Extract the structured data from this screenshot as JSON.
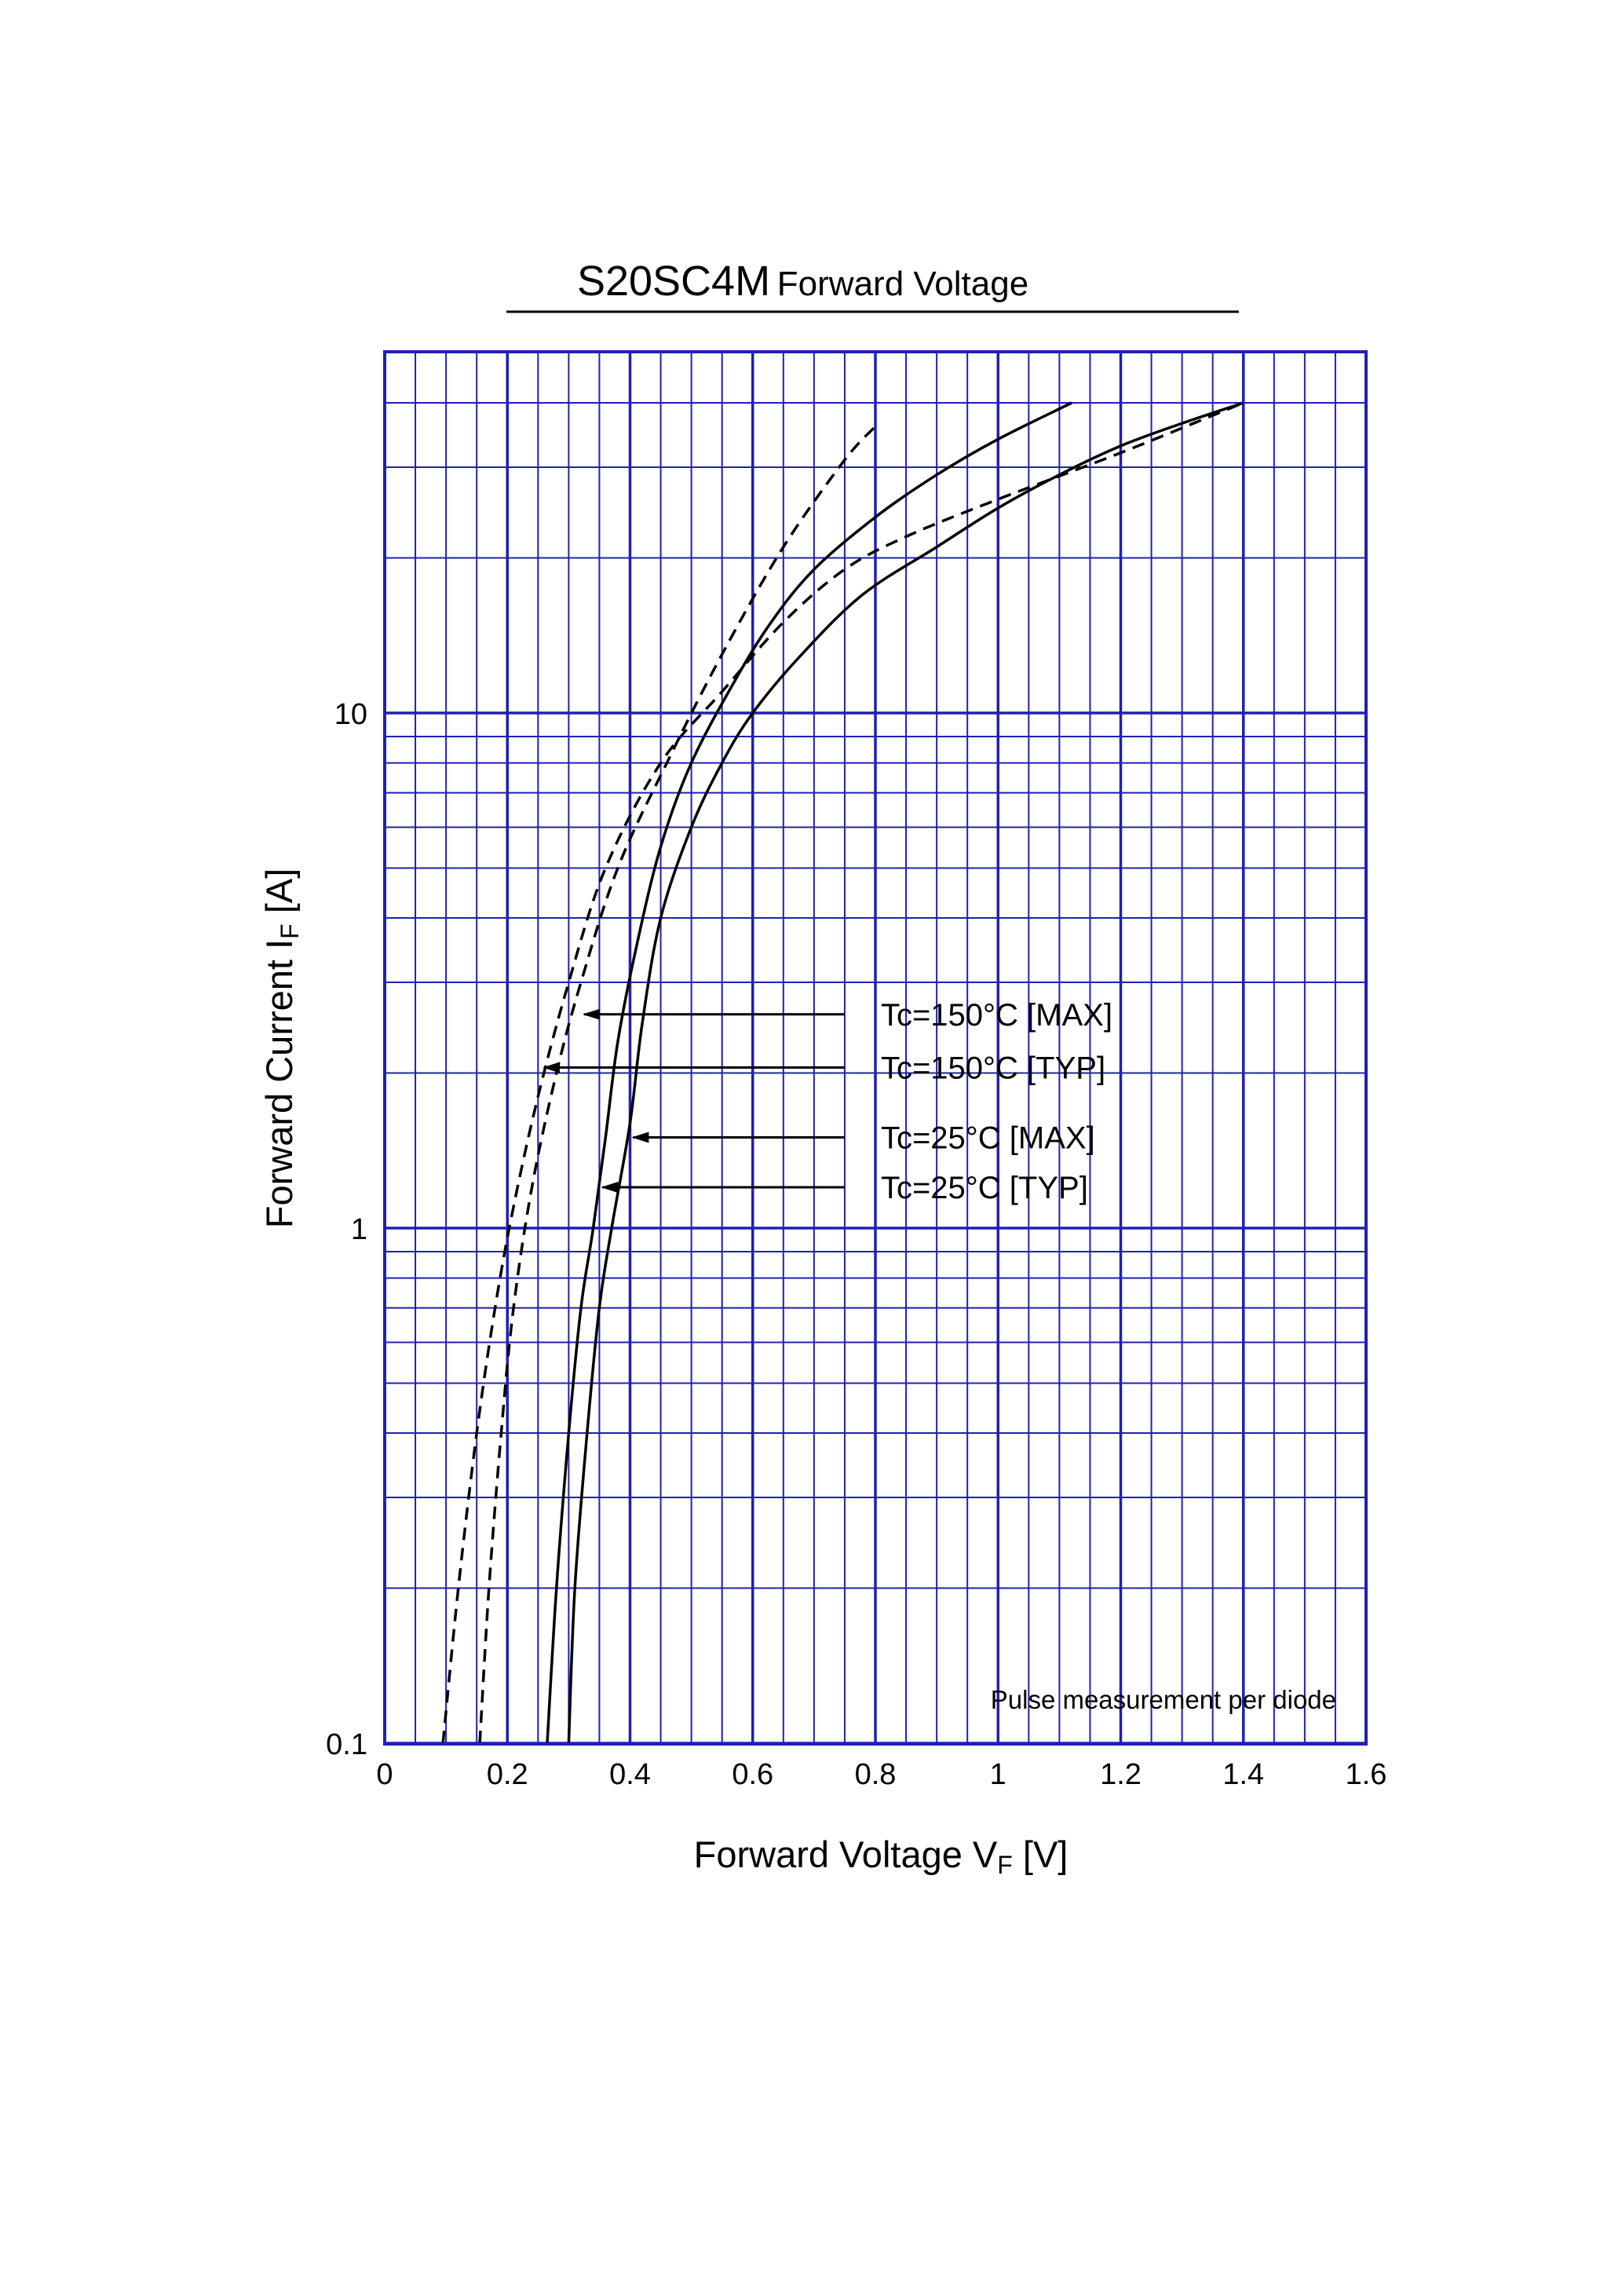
{
  "chart_data": {
    "type": "line",
    "title": "S20SC4M",
    "subtitle": "Forward Voltage",
    "xlabel": {
      "main": "Forward Voltage  V",
      "sub": "F",
      "unit": "  [V]"
    },
    "ylabel": {
      "main": "Forward Current  I",
      "sub": "F",
      "unit": "  [A]"
    },
    "xscale": "linear",
    "yscale": "log",
    "xlim": [
      0,
      1.6
    ],
    "ylim": [
      0.1,
      40
    ],
    "xticks": [
      0,
      0.2,
      0.4,
      0.6,
      0.8,
      1.0,
      1.2,
      1.4,
      1.6
    ],
    "xtick_labels": [
      "0",
      "0.2",
      "0.4",
      "0.6",
      "0.8",
      "1",
      "1.2",
      "1.4",
      "1.6"
    ],
    "xgrid_step": 0.05,
    "yticks": [
      0.1,
      1,
      10
    ],
    "ytick_labels": [
      "0.1",
      "1",
      "10"
    ],
    "grid": true,
    "colors": {
      "grid": "#2020b0",
      "curve": "#000000"
    },
    "note": "Pulse measurement per diode",
    "series": [
      {
        "name": "Tc=150°C [MAX]",
        "style": "dashed",
        "x": [
          0.155,
          0.17,
          0.19,
          0.21,
          0.24,
          0.28,
          0.32,
          0.38,
          0.46,
          0.55,
          0.65,
          0.75,
          0.8
        ],
        "y": [
          0.1,
          0.2,
          0.4,
          0.7,
          1.2,
          2.0,
          3.0,
          5.0,
          8.0,
          13.0,
          21.0,
          31.0,
          36.0
        ],
        "label": "Tc=150°C [MAX]",
        "arrow_target": [
          0.325,
          2.6
        ]
      },
      {
        "name": "Tc=150°C [TYP]",
        "style": "dashed",
        "x": [
          0.095,
          0.12,
          0.15,
          0.18,
          0.21,
          0.25,
          0.3,
          0.36,
          0.45,
          0.55,
          0.65,
          0.75,
          0.85,
          1.0,
          1.2,
          1.4
        ],
        "y": [
          0.1,
          0.2,
          0.4,
          0.7,
          1.1,
          1.8,
          3.0,
          5.0,
          8.0,
          11.0,
          15.0,
          19.0,
          22.0,
          26.0,
          32.0,
          40.0
        ],
        "label": "Tc=150°C [TYP]",
        "arrow_target": [
          0.26,
          2.05
        ]
      },
      {
        "name": "Tc=25°C [MAX]",
        "style": "solid",
        "x": [
          0.3,
          0.31,
          0.33,
          0.35,
          0.37,
          0.4,
          0.42,
          0.45,
          0.5,
          0.55,
          0.6,
          0.68,
          0.78,
          0.9,
          1.0,
          1.1,
          1.2,
          1.3,
          1.4
        ],
        "y": [
          0.1,
          0.2,
          0.4,
          0.7,
          1.0,
          1.6,
          2.5,
          4.0,
          6.0,
          8.0,
          10.0,
          13.0,
          17.0,
          21.0,
          25.0,
          29.0,
          33.0,
          36.5,
          40.0
        ],
        "label": "Tc=25°C [MAX]",
        "arrow_target": [
          0.405,
          1.5
        ]
      },
      {
        "name": "Tc=25°C [TYP]",
        "style": "solid",
        "x": [
          0.265,
          0.28,
          0.3,
          0.32,
          0.34,
          0.36,
          0.38,
          0.41,
          0.45,
          0.5,
          0.57,
          0.63,
          0.7,
          0.8,
          0.9,
          1.0,
          1.12
        ],
        "y": [
          0.1,
          0.2,
          0.4,
          0.7,
          1.0,
          1.5,
          2.3,
          3.5,
          5.5,
          8.0,
          11.5,
          15.0,
          19.0,
          24.0,
          29.0,
          34.0,
          40.0
        ],
        "label": "Tc=25°C [TYP]",
        "arrow_target": [
          0.355,
          1.2
        ]
      }
    ],
    "label_anchor_x": 0.75,
    "label_y": [
      2.6,
      2.05,
      1.5,
      1.2
    ]
  }
}
